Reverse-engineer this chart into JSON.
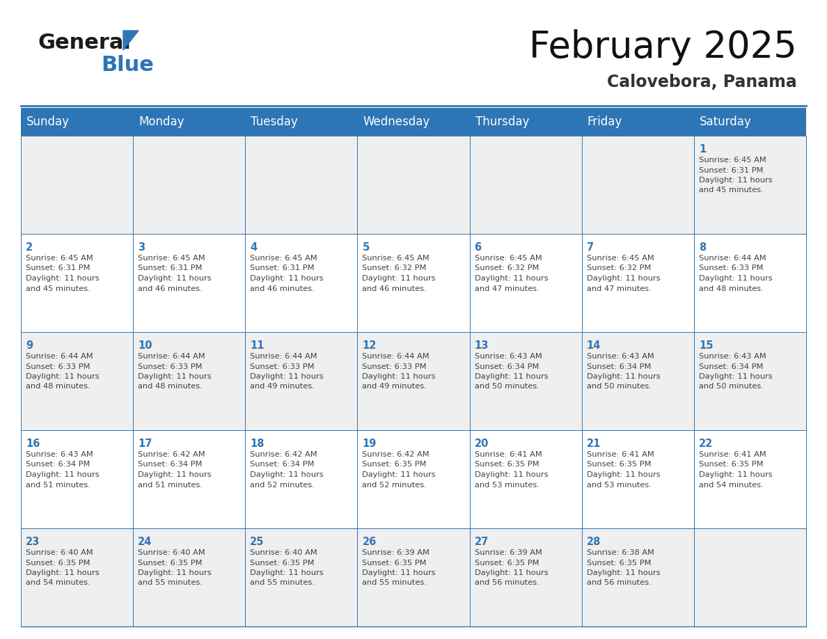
{
  "title": "February 2025",
  "subtitle": "Calovebora, Panama",
  "header_bg": "#2E75B6",
  "header_text_color": "#FFFFFF",
  "cell_bg_odd": "#EFEFEF",
  "cell_bg_even": "#FFFFFF",
  "grid_line_color": "#2E75B6",
  "day_number_color": "#2E75B6",
  "info_text_color": "#404040",
  "days_of_week": [
    "Sunday",
    "Monday",
    "Tuesday",
    "Wednesday",
    "Thursday",
    "Friday",
    "Saturday"
  ],
  "weeks": [
    [
      null,
      null,
      null,
      null,
      null,
      null,
      1
    ],
    [
      2,
      3,
      4,
      5,
      6,
      7,
      8
    ],
    [
      9,
      10,
      11,
      12,
      13,
      14,
      15
    ],
    [
      16,
      17,
      18,
      19,
      20,
      21,
      22
    ],
    [
      23,
      24,
      25,
      26,
      27,
      28,
      null
    ]
  ],
  "cell_data": {
    "1": {
      "sunrise": "6:45 AM",
      "sunset": "6:31 PM",
      "daylight": "11 hours and 45 minutes."
    },
    "2": {
      "sunrise": "6:45 AM",
      "sunset": "6:31 PM",
      "daylight": "11 hours and 45 minutes."
    },
    "3": {
      "sunrise": "6:45 AM",
      "sunset": "6:31 PM",
      "daylight": "11 hours and 46 minutes."
    },
    "4": {
      "sunrise": "6:45 AM",
      "sunset": "6:31 PM",
      "daylight": "11 hours and 46 minutes."
    },
    "5": {
      "sunrise": "6:45 AM",
      "sunset": "6:32 PM",
      "daylight": "11 hours and 46 minutes."
    },
    "6": {
      "sunrise": "6:45 AM",
      "sunset": "6:32 PM",
      "daylight": "11 hours and 47 minutes."
    },
    "7": {
      "sunrise": "6:45 AM",
      "sunset": "6:32 PM",
      "daylight": "11 hours and 47 minutes."
    },
    "8": {
      "sunrise": "6:44 AM",
      "sunset": "6:33 PM",
      "daylight": "11 hours and 48 minutes."
    },
    "9": {
      "sunrise": "6:44 AM",
      "sunset": "6:33 PM",
      "daylight": "11 hours and 48 minutes."
    },
    "10": {
      "sunrise": "6:44 AM",
      "sunset": "6:33 PM",
      "daylight": "11 hours and 48 minutes."
    },
    "11": {
      "sunrise": "6:44 AM",
      "sunset": "6:33 PM",
      "daylight": "11 hours and 49 minutes."
    },
    "12": {
      "sunrise": "6:44 AM",
      "sunset": "6:33 PM",
      "daylight": "11 hours and 49 minutes."
    },
    "13": {
      "sunrise": "6:43 AM",
      "sunset": "6:34 PM",
      "daylight": "11 hours and 50 minutes."
    },
    "14": {
      "sunrise": "6:43 AM",
      "sunset": "6:34 PM",
      "daylight": "11 hours and 50 minutes."
    },
    "15": {
      "sunrise": "6:43 AM",
      "sunset": "6:34 PM",
      "daylight": "11 hours and 50 minutes."
    },
    "16": {
      "sunrise": "6:43 AM",
      "sunset": "6:34 PM",
      "daylight": "11 hours and 51 minutes."
    },
    "17": {
      "sunrise": "6:42 AM",
      "sunset": "6:34 PM",
      "daylight": "11 hours and 51 minutes."
    },
    "18": {
      "sunrise": "6:42 AM",
      "sunset": "6:34 PM",
      "daylight": "11 hours and 52 minutes."
    },
    "19": {
      "sunrise": "6:42 AM",
      "sunset": "6:35 PM",
      "daylight": "11 hours and 52 minutes."
    },
    "20": {
      "sunrise": "6:41 AM",
      "sunset": "6:35 PM",
      "daylight": "11 hours and 53 minutes."
    },
    "21": {
      "sunrise": "6:41 AM",
      "sunset": "6:35 PM",
      "daylight": "11 hours and 53 minutes."
    },
    "22": {
      "sunrise": "6:41 AM",
      "sunset": "6:35 PM",
      "daylight": "11 hours and 54 minutes."
    },
    "23": {
      "sunrise": "6:40 AM",
      "sunset": "6:35 PM",
      "daylight": "11 hours and 54 minutes."
    },
    "24": {
      "sunrise": "6:40 AM",
      "sunset": "6:35 PM",
      "daylight": "11 hours and 55 minutes."
    },
    "25": {
      "sunrise": "6:40 AM",
      "sunset": "6:35 PM",
      "daylight": "11 hours and 55 minutes."
    },
    "26": {
      "sunrise": "6:39 AM",
      "sunset": "6:35 PM",
      "daylight": "11 hours and 55 minutes."
    },
    "27": {
      "sunrise": "6:39 AM",
      "sunset": "6:35 PM",
      "daylight": "11 hours and 56 minutes."
    },
    "28": {
      "sunrise": "6:38 AM",
      "sunset": "6:35 PM",
      "daylight": "11 hours and 56 minutes."
    }
  },
  "logo_text_general": "General",
  "logo_text_blue": "Blue",
  "title_fontsize": 38,
  "subtitle_fontsize": 17,
  "header_fontsize": 12,
  "day_num_fontsize": 10.5,
  "cell_info_fontsize": 8.2
}
